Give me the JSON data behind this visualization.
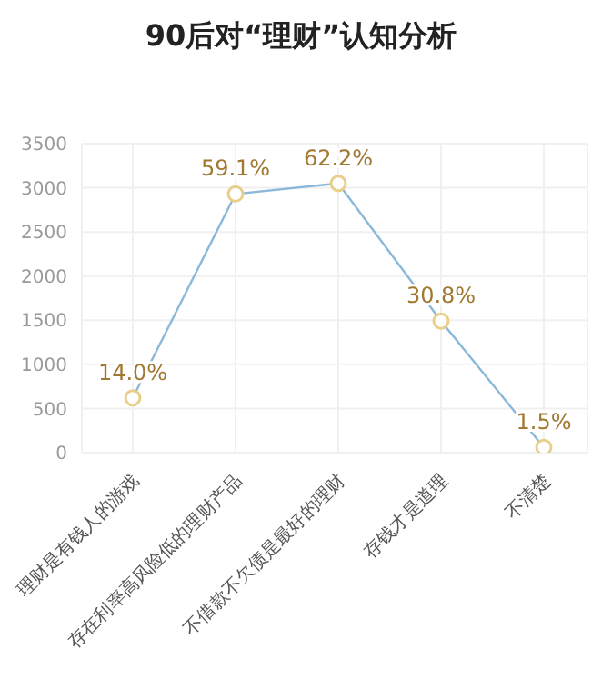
{
  "chart_data": {
    "type": "line",
    "title": "90后对“理财”认知分析",
    "categories": [
      "理财是有钱人的游戏",
      "存在利率高风险低的理财产品",
      "不借款不欠债是最好的理财",
      "存钱才是道理",
      "不清楚"
    ],
    "series": [
      {
        "color": "#8ab8d8",
        "values": [
          620,
          2930,
          3050,
          1490,
          60
        ]
      }
    ],
    "annotations": [
      {
        "text": "14.0%",
        "x": "理财是有钱人的游戏",
        "y": 620
      },
      {
        "text": "59.1%",
        "x": "存在利率高风险低的理财产品",
        "y": 2930
      },
      {
        "text": "62.2%",
        "x": "不借款不欠债是最好的理财",
        "y": 3050
      },
      {
        "text": "30.8%",
        "x": "存钱才是道理",
        "y": 1490
      },
      {
        "text": "1.5%",
        "x": "不清楚",
        "y": 60
      }
    ],
    "ylim": [
      0,
      3500
    ],
    "yticks": [
      0,
      500,
      1000,
      1500,
      2000,
      2500,
      3000,
      3500
    ],
    "grid": true,
    "marker": "circle",
    "line_style": "solid"
  }
}
